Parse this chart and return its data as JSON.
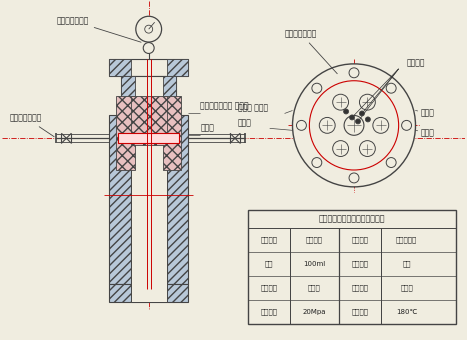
{
  "bg_color": "#f0ede0",
  "line_color": "#444444",
  "red_color": "#cc0000",
  "pink_fill": "#e8c0c0",
  "hatch_fill": "#b8c8d8",
  "table_title": "北京世纪森肃实验仪器有限公司",
  "table_data": [
    [
      "客户名称",
      "北京大学",
      "设备名称",
      "蓝宝石管实"
    ],
    [
      "容积",
      "100ml",
      "主体材质",
      "锄金"
    ],
    [
      "衩片材质",
      "蓝宝石",
      "挿头材质",
      "不锈锂"
    ],
    [
      "设计压力",
      "20Mpa",
      "设计温度",
      "180℃"
    ]
  ],
  "label_pressure_left": "压力表和爆破片",
  "label_sample_left": "取样口和排气口",
  "label_inlet_top": "进气口和进液口 排气口",
  "label_sample_mid": "取样口",
  "label_pressure_right": "压力表和爆破片",
  "label_sapphire": "蓝宝石孔",
  "label_liquid_in": "进液口",
  "label_gas_in": "进气口"
}
